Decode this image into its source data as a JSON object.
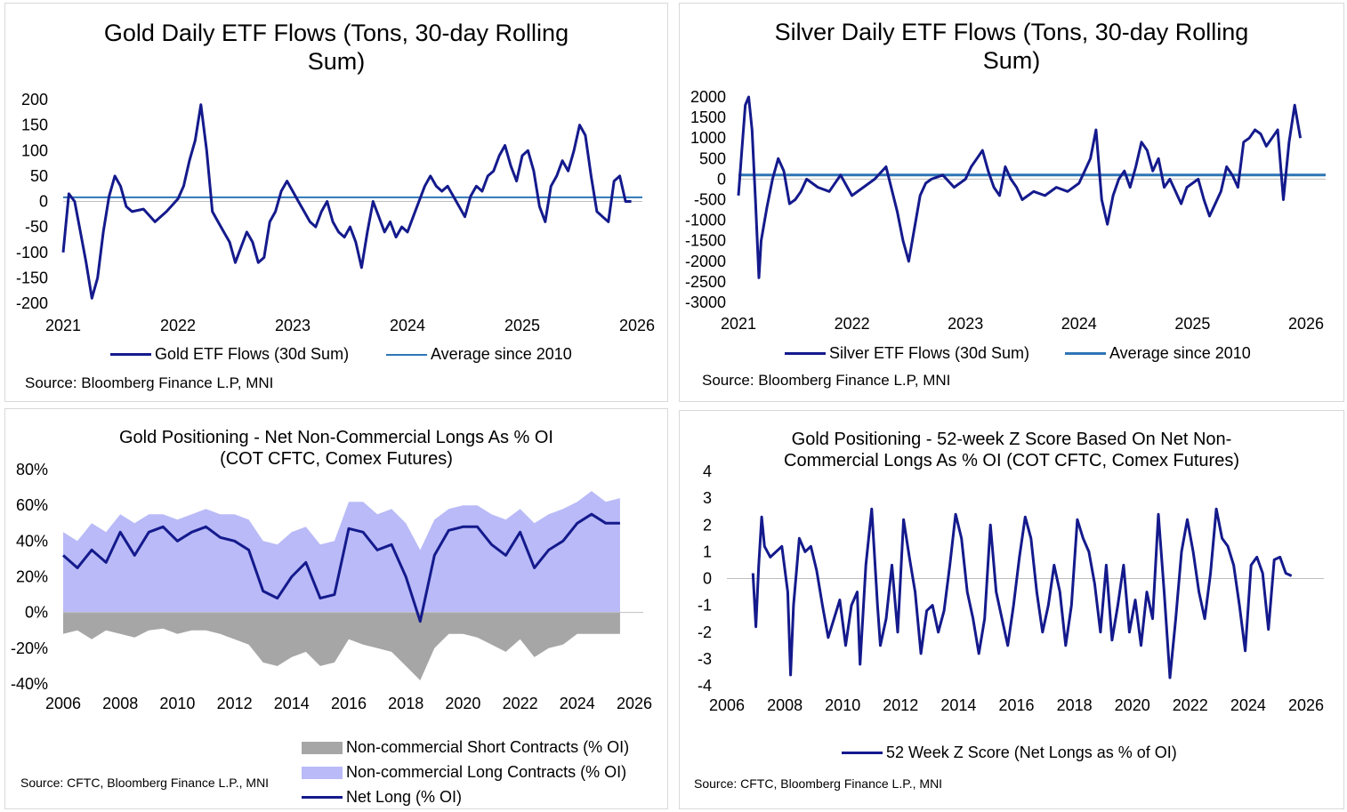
{
  "colors": {
    "navy": "#141a8c",
    "avg": "#2e75b6",
    "long_fill": "#b9baf7",
    "short_fill": "#a6a6a6",
    "zero_line": "#bfbfbf"
  },
  "panels": {
    "gold_etf": {
      "title": [
        "Gold Daily ETF Flows (Tons, 30-day Rolling",
        "Sum)"
      ],
      "legend": {
        "series": "Gold ETF Flows (30d Sum)",
        "average": "Average since 2010"
      },
      "source": "Source: Bloomberg Finance L.P, MNI"
    },
    "silver_etf": {
      "title": [
        "Silver Daily ETF Flows (Tons, 30-day Rolling",
        "Sum)"
      ],
      "legend": {
        "series": "Silver ETF Flows (30d Sum)",
        "average": "Average since 2010"
      },
      "source": "Source: Bloomberg Finance L.P, MNI"
    },
    "gold_cot": {
      "title": [
        "Gold Positioning - Net Non-Commercial Longs As % OI",
        "(COT CFTC, Comex Futures)"
      ],
      "legend": {
        "short": "Non-commercial Short Contracts (% OI)",
        "long": "Non-commercial Long Contracts (% OI)",
        "net": "Net Long (% OI)"
      },
      "source": "Source: CFTC, Bloomberg Finance L.P., MNI"
    },
    "gold_z": {
      "title": [
        "Gold Positioning - 52-week Z Score Based On Net Non-",
        "Commercial Longs As % OI (COT CFTC, Comex Futures)"
      ],
      "legend": {
        "series": "52 Week Z Score (Net Longs as % of OI)"
      },
      "source": "Source: CFTC, Bloomberg Finance L.P., MNI"
    }
  },
  "chart_data": [
    {
      "id": "gold_etf",
      "type": "line",
      "title": "Gold Daily ETF Flows (Tons, 30-day Rolling Sum)",
      "xlabel": "",
      "ylabel": "",
      "x_ticks": [
        "2021",
        "2022",
        "2023",
        "2024",
        "2025",
        "2026"
      ],
      "x_range": [
        2021,
        2026
      ],
      "y_ticks": [
        "200",
        "150",
        "100",
        "50",
        "0",
        "-50",
        "-100",
        "-150",
        "-200"
      ],
      "ylim": [
        -200,
        200
      ],
      "average": 8,
      "series": [
        {
          "name": "Gold ETF Flows (30d Sum)",
          "x": [
            2021.0,
            2021.05,
            2021.1,
            2021.15,
            2021.2,
            2021.25,
            2021.3,
            2021.35,
            2021.4,
            2021.45,
            2021.5,
            2021.55,
            2021.6,
            2021.7,
            2021.8,
            2021.9,
            2022.0,
            2022.05,
            2022.1,
            2022.15,
            2022.2,
            2022.25,
            2022.3,
            2022.35,
            2022.4,
            2022.45,
            2022.5,
            2022.55,
            2022.6,
            2022.65,
            2022.7,
            2022.75,
            2022.8,
            2022.85,
            2022.9,
            2022.95,
            2023.0,
            2023.05,
            2023.1,
            2023.15,
            2023.2,
            2023.25,
            2023.3,
            2023.35,
            2023.4,
            2023.45,
            2023.5,
            2023.55,
            2023.6,
            2023.65,
            2023.7,
            2023.75,
            2023.8,
            2023.85,
            2023.9,
            2023.95,
            2024.0,
            2024.05,
            2024.1,
            2024.15,
            2024.2,
            2024.25,
            2024.3,
            2024.35,
            2024.4,
            2024.45,
            2024.5,
            2024.55,
            2024.6,
            2024.65,
            2024.7,
            2024.75,
            2024.8,
            2024.85,
            2024.9,
            2024.95,
            2025.0,
            2025.05,
            2025.1,
            2025.15,
            2025.2,
            2025.25,
            2025.3,
            2025.35,
            2025.4,
            2025.45,
            2025.5,
            2025.55,
            2025.6,
            2025.65,
            2025.7,
            2025.75,
            2025.8,
            2025.85,
            2025.9,
            2025.95
          ],
          "values": [
            -100,
            15,
            0,
            -60,
            -120,
            -190,
            -150,
            -60,
            10,
            50,
            30,
            -10,
            -20,
            -15,
            -40,
            -20,
            5,
            30,
            80,
            120,
            190,
            100,
            -20,
            -40,
            -60,
            -80,
            -120,
            -90,
            -60,
            -80,
            -120,
            -110,
            -40,
            -20,
            20,
            40,
            20,
            0,
            -20,
            -40,
            -50,
            -20,
            0,
            -40,
            -60,
            -70,
            -50,
            -80,
            -130,
            -60,
            0,
            -30,
            -60,
            -40,
            -70,
            -50,
            -60,
            -30,
            0,
            30,
            50,
            30,
            20,
            30,
            10,
            -10,
            -30,
            10,
            30,
            20,
            50,
            60,
            90,
            110,
            70,
            40,
            90,
            100,
            60,
            -10,
            -40,
            30,
            50,
            80,
            60,
            100,
            150,
            130,
            50,
            -20,
            -30,
            -40,
            40,
            50,
            0,
            0
          ]
        }
      ]
    },
    {
      "id": "silver_etf",
      "type": "line",
      "title": "Silver Daily ETF Flows (Tons, 30-day Rolling Sum)",
      "xlabel": "",
      "ylabel": "",
      "x_ticks": [
        "2021",
        "2022",
        "2023",
        "2024",
        "2025",
        "2026"
      ],
      "x_range": [
        2021,
        2026
      ],
      "y_ticks": [
        "2000",
        "1500",
        "1000",
        "500",
        "0",
        "-500",
        "-1000",
        "-1500",
        "-2000",
        "-2500",
        "-3000"
      ],
      "ylim": [
        -3000,
        2000
      ],
      "average": 100,
      "series": [
        {
          "name": "Silver ETF Flows (30d Sum)",
          "x": [
            2021.0,
            2021.03,
            2021.06,
            2021.09,
            2021.12,
            2021.15,
            2021.18,
            2021.2,
            2021.25,
            2021.3,
            2021.35,
            2021.4,
            2021.45,
            2021.5,
            2021.55,
            2021.6,
            2021.7,
            2021.8,
            2021.9,
            2022.0,
            2022.1,
            2022.2,
            2022.3,
            2022.4,
            2022.45,
            2022.5,
            2022.55,
            2022.6,
            2022.65,
            2022.7,
            2022.8,
            2022.9,
            2023.0,
            2023.05,
            2023.1,
            2023.15,
            2023.2,
            2023.25,
            2023.3,
            2023.35,
            2023.4,
            2023.45,
            2023.5,
            2023.6,
            2023.7,
            2023.8,
            2023.9,
            2024.0,
            2024.05,
            2024.1,
            2024.15,
            2024.2,
            2024.25,
            2024.3,
            2024.35,
            2024.4,
            2024.45,
            2024.5,
            2024.55,
            2024.6,
            2024.65,
            2024.7,
            2024.75,
            2024.8,
            2024.85,
            2024.9,
            2024.95,
            2025.0,
            2025.05,
            2025.1,
            2025.15,
            2025.2,
            2025.25,
            2025.3,
            2025.35,
            2025.4,
            2025.45,
            2025.5,
            2025.55,
            2025.6,
            2025.65,
            2025.7,
            2025.75,
            2025.8,
            2025.85,
            2025.9,
            2025.95
          ],
          "values": [
            -400,
            700,
            1800,
            2000,
            1200,
            -500,
            -2400,
            -1500,
            -700,
            0,
            500,
            200,
            -600,
            -500,
            -300,
            0,
            -200,
            -300,
            100,
            -400,
            -200,
            0,
            300,
            -800,
            -1500,
            -2000,
            -1200,
            -400,
            -100,
            0,
            100,
            -200,
            0,
            300,
            500,
            700,
            200,
            -200,
            -400,
            300,
            0,
            -200,
            -500,
            -300,
            -400,
            -200,
            -300,
            -100,
            200,
            500,
            1200,
            -500,
            -1100,
            -400,
            0,
            200,
            -200,
            300,
            900,
            700,
            200,
            500,
            -200,
            0,
            -300,
            -600,
            -200,
            -100,
            0,
            -500,
            -900,
            -600,
            -300,
            300,
            100,
            -200,
            900,
            1000,
            1200,
            1100,
            800,
            1000,
            1200,
            -500,
            900,
            1800,
            1000
          ]
        }
      ]
    },
    {
      "id": "gold_cot",
      "type": "area",
      "title": "Gold Positioning - Net Non-Commercial Longs As % OI (COT CFTC, Comex Futures)",
      "xlabel": "",
      "ylabel": "",
      "x_ticks": [
        "2006",
        "2008",
        "2010",
        "2012",
        "2014",
        "2016",
        "2018",
        "2020",
        "2022",
        "2024",
        "2026"
      ],
      "x_range": [
        2006,
        2026
      ],
      "y_ticks": [
        "80%",
        "60%",
        "40%",
        "20%",
        "0%",
        "-20%",
        "-40%"
      ],
      "ylim": [
        -40,
        80
      ],
      "x": [
        2006.0,
        2006.5,
        2007.0,
        2007.5,
        2008.0,
        2008.5,
        2009.0,
        2009.5,
        2010.0,
        2010.5,
        2011.0,
        2011.5,
        2012.0,
        2012.5,
        2013.0,
        2013.5,
        2014.0,
        2014.5,
        2015.0,
        2015.5,
        2016.0,
        2016.5,
        2017.0,
        2017.5,
        2018.0,
        2018.5,
        2019.0,
        2019.5,
        2020.0,
        2020.5,
        2021.0,
        2021.5,
        2022.0,
        2022.5,
        2023.0,
        2023.5,
        2024.0,
        2024.5,
        2025.0,
        2025.5
      ],
      "series": [
        {
          "name": "Non-commercial Short Contracts (% OI)",
          "values": [
            -12,
            -10,
            -15,
            -10,
            -12,
            -14,
            -10,
            -9,
            -12,
            -10,
            -10,
            -12,
            -15,
            -18,
            -28,
            -30,
            -25,
            -22,
            -30,
            -28,
            -15,
            -18,
            -20,
            -22,
            -30,
            -38,
            -20,
            -12,
            -12,
            -14,
            -18,
            -22,
            -15,
            -25,
            -20,
            -18,
            -12,
            -12,
            -12,
            -12
          ]
        },
        {
          "name": "Non-commercial Long Contracts (% OI)",
          "values": [
            45,
            40,
            50,
            45,
            55,
            50,
            55,
            55,
            52,
            55,
            58,
            55,
            55,
            52,
            40,
            38,
            45,
            48,
            38,
            40,
            62,
            62,
            55,
            58,
            50,
            35,
            52,
            58,
            60,
            60,
            55,
            52,
            58,
            50,
            55,
            58,
            62,
            68,
            62,
            64
          ]
        },
        {
          "name": "Net Long (% OI)",
          "values": [
            32,
            25,
            35,
            28,
            45,
            32,
            45,
            48,
            40,
            45,
            48,
            42,
            40,
            35,
            12,
            8,
            20,
            28,
            8,
            10,
            47,
            45,
            35,
            38,
            20,
            -5,
            32,
            46,
            48,
            48,
            38,
            32,
            45,
            25,
            35,
            40,
            50,
            55,
            50,
            50
          ]
        }
      ]
    },
    {
      "id": "gold_z",
      "type": "line",
      "title": "Gold Positioning - 52-week Z Score Based On Net Non-Commercial Longs As % OI (COT CFTC, Comex Futures)",
      "xlabel": "",
      "ylabel": "",
      "x_ticks": [
        "2006",
        "2008",
        "2010",
        "2012",
        "2014",
        "2016",
        "2018",
        "2020",
        "2022",
        "2024",
        "2026"
      ],
      "x_range": [
        2006,
        2026
      ],
      "y_ticks": [
        "4",
        "3",
        "2",
        "1",
        "0",
        "-1",
        "-2",
        "-3",
        "-4"
      ],
      "ylim": [
        -4,
        4
      ],
      "series": [
        {
          "name": "52 Week Z Score (Net Longs as % of OI)",
          "x": [
            2006.9,
            2007.0,
            2007.1,
            2007.2,
            2007.3,
            2007.5,
            2007.7,
            2007.9,
            2008.1,
            2008.2,
            2008.3,
            2008.5,
            2008.7,
            2008.9,
            2009.1,
            2009.3,
            2009.5,
            2009.7,
            2009.9,
            2010.1,
            2010.3,
            2010.5,
            2010.6,
            2010.8,
            2011.0,
            2011.2,
            2011.3,
            2011.5,
            2011.7,
            2011.9,
            2012.1,
            2012.3,
            2012.5,
            2012.7,
            2012.9,
            2013.1,
            2013.3,
            2013.5,
            2013.7,
            2013.9,
            2014.1,
            2014.3,
            2014.5,
            2014.7,
            2014.9,
            2015.1,
            2015.3,
            2015.5,
            2015.7,
            2015.9,
            2016.1,
            2016.3,
            2016.5,
            2016.7,
            2016.9,
            2017.1,
            2017.3,
            2017.5,
            2017.7,
            2017.9,
            2018.1,
            2018.3,
            2018.5,
            2018.7,
            2018.9,
            2019.1,
            2019.3,
            2019.5,
            2019.7,
            2019.9,
            2020.1,
            2020.3,
            2020.5,
            2020.7,
            2020.9,
            2021.1,
            2021.3,
            2021.5,
            2021.7,
            2021.9,
            2022.1,
            2022.3,
            2022.5,
            2022.7,
            2022.9,
            2023.1,
            2023.3,
            2023.5,
            2023.7,
            2023.9,
            2024.1,
            2024.3,
            2024.5,
            2024.7,
            2024.9,
            2025.1,
            2025.3,
            2025.5
          ],
          "values": [
            0.2,
            -1.8,
            0.5,
            2.3,
            1.2,
            0.8,
            1.0,
            1.2,
            -0.5,
            -3.6,
            -1.0,
            1.5,
            1.0,
            1.2,
            0.3,
            -1.0,
            -2.2,
            -1.5,
            -0.8,
            -2.5,
            -1.0,
            -0.5,
            -3.2,
            0.5,
            2.6,
            -1.0,
            -2.5,
            -1.5,
            0.5,
            -2.0,
            2.2,
            0.8,
            -0.5,
            -2.8,
            -1.2,
            -1.0,
            -2.0,
            -1.2,
            0.5,
            2.4,
            1.5,
            -0.5,
            -1.5,
            -2.8,
            -1.5,
            2.0,
            -0.5,
            -1.5,
            -2.5,
            -1.0,
            0.8,
            2.3,
            1.5,
            -0.5,
            -2.0,
            -1.0,
            0.5,
            -0.5,
            -2.5,
            -1.0,
            2.2,
            1.5,
            1.0,
            -0.2,
            -2.0,
            0.5,
            -2.3,
            -1.0,
            0.5,
            -2.0,
            -0.8,
            -2.5,
            -0.5,
            -1.5,
            2.4,
            -0.5,
            -3.7,
            -1.5,
            1.0,
            2.2,
            1.0,
            -0.5,
            -1.5,
            0.2,
            2.6,
            1.5,
            1.2,
            0.5,
            -1.0,
            -2.7,
            0.5,
            0.8,
            0.2,
            -1.9,
            0.7,
            0.8,
            0.2,
            0.1
          ]
        }
      ]
    }
  ]
}
